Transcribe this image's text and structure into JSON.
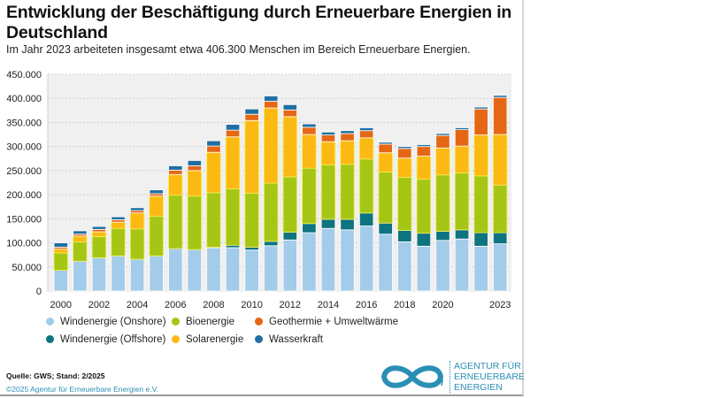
{
  "title": "Entwicklung der Beschäftigung durch Erneuerbare Energien in Deutschland",
  "subtitle": "Im Jahr 2023 arbeiteten insgesamt etwa 406.300 Menschen im Bereich Erneuerbare Energien.",
  "source": "Quelle: GWS; Stand: 2/2025",
  "copyright": "©2025 Agentur für Erneuerbare Energien e.V.",
  "logo": {
    "icon": "infinity-icon",
    "lines": [
      "AGENTUR FÜR",
      "ERNEUERBARE",
      "ENERGIEN"
    ],
    "color": "#2b8fb5"
  },
  "chart_data": {
    "type": "bar",
    "stacked": true,
    "title": "Entwicklung der Beschäftigung durch Erneuerbare Energien in Deutschland",
    "xlabel": "",
    "ylabel": "",
    "ylim": [
      0,
      450000
    ],
    "yticks": [
      0,
      50000,
      100000,
      150000,
      200000,
      250000,
      300000,
      350000,
      400000,
      450000
    ],
    "ytick_labels": [
      "0",
      "50.000",
      "100.000",
      "150.000",
      "200.000",
      "250.000",
      "300.000",
      "350.000",
      "400.000",
      "450.000"
    ],
    "grid": true,
    "legend_position": "bottom",
    "categories": [
      "2000",
      "2001",
      "2002",
      "2003",
      "2004",
      "2005",
      "2006",
      "2007",
      "2008",
      "2009",
      "2010",
      "2011",
      "2012",
      "2013",
      "2014",
      "2015",
      "2016",
      "2017",
      "2018",
      "2019",
      "2020",
      "2021",
      "2022",
      "2023"
    ],
    "xtick_labels": [
      "2000",
      "",
      "2002",
      "",
      "2004",
      "",
      "2006",
      "",
      "2008",
      "",
      "2010",
      "",
      "2012",
      "",
      "2014",
      "",
      "2016",
      "",
      "2018",
      "",
      "2020",
      "",
      "",
      "2023"
    ],
    "series": [
      {
        "name": "Windenergie (Onshore)",
        "color": "#a3cbea",
        "values": [
          43000,
          62000,
          69000,
          73000,
          66000,
          73000,
          88000,
          86000,
          89000,
          90000,
          85000,
          94000,
          106000,
          121000,
          130000,
          127000,
          135000,
          118000,
          102000,
          93000,
          105000,
          108000,
          93000,
          98000
        ]
      },
      {
        "name": "Windenergie (Offshore)",
        "color": "#0d7480",
        "values": [
          0,
          0,
          0,
          0,
          0,
          0,
          0,
          0,
          2000,
          5000,
          6000,
          9000,
          16000,
          19000,
          19000,
          22000,
          27000,
          23000,
          24000,
          27000,
          19000,
          19000,
          28000,
          23000
        ]
      },
      {
        "name": "Bioenergie",
        "color": "#a6c615",
        "values": [
          36000,
          40000,
          44000,
          57000,
          63000,
          82000,
          111000,
          111000,
          113000,
          117000,
          112000,
          121000,
          115000,
          115000,
          113000,
          114000,
          112000,
          106000,
          110000,
          112000,
          117000,
          118000,
          118000,
          99000
        ]
      },
      {
        "name": "Solarenergie",
        "color": "#fdb913",
        "values": [
          8000,
          12000,
          10000,
          13000,
          33000,
          42000,
          43000,
          53000,
          84000,
          108000,
          151000,
          156000,
          125000,
          70000,
          48000,
          49000,
          44000,
          40000,
          40000,
          48000,
          56000,
          56000,
          85000,
          105000
        ]
      },
      {
        "name": "Geothermie + Umweltwärme",
        "color": "#e56715",
        "values": [
          4000,
          4000,
          5000,
          5000,
          5000,
          5000,
          9000,
          10000,
          13000,
          14000,
          13000,
          14000,
          14000,
          15000,
          14000,
          15000,
          15000,
          18000,
          20000,
          20000,
          26000,
          34000,
          54000,
          77000
        ]
      },
      {
        "name": "Wasserkraft",
        "color": "#1f6fa3",
        "values": [
          9000,
          7000,
          6000,
          6000,
          6000,
          8000,
          9000,
          11000,
          11000,
          12000,
          11000,
          11000,
          11000,
          7000,
          6000,
          6000,
          6000,
          4000,
          4000,
          4000,
          4000,
          4000,
          4000,
          4300
        ]
      }
    ],
    "total_2023": 406300
  },
  "legend": [
    {
      "label": "Windenergie (Onshore)",
      "color": "#a3cbea"
    },
    {
      "label": "Bioenergie",
      "color": "#a6c615"
    },
    {
      "label": "Geothermie + Umweltwärme",
      "color": "#e56715"
    },
    {
      "label": "Windenergie (Offshore)",
      "color": "#0d7480"
    },
    {
      "label": "Solarenergie",
      "color": "#fdb913"
    },
    {
      "label": "Wasserkraft",
      "color": "#1f6fa3"
    }
  ]
}
